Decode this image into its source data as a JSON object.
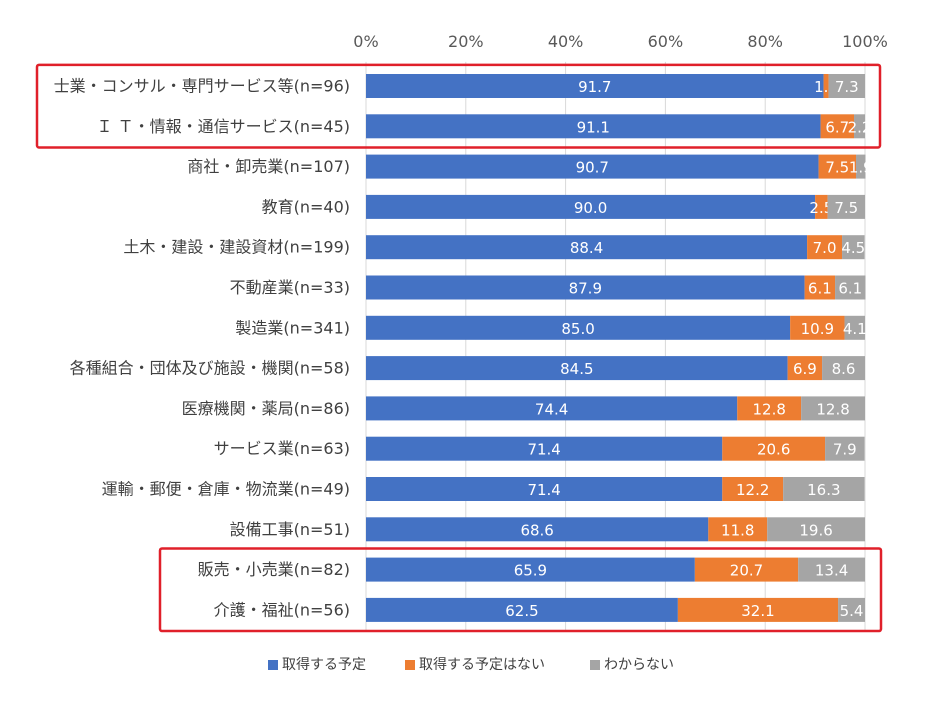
{
  "chart_data": {
    "type": "bar",
    "orientation": "horizontal",
    "stacked": true,
    "normalized_to_percent": true,
    "x_ticks": [
      "0%",
      "20%",
      "40%",
      "60%",
      "80%",
      "100%"
    ],
    "xlim": [
      0,
      100
    ],
    "grid": true,
    "legend_position": "bottom",
    "categories": [
      "士業・コンサル・専門サービス等(n=96)",
      "Ｉ Ｔ・情報・通信サービス(n=45)",
      "商社・卸売業(n=107)",
      "教育(n=40)",
      "土木・建設・建設資材(n=199)",
      "不動産業(n=33)",
      "製造業(n=341)",
      "各種組合・団体及び施設・機関(n=58)",
      "医療機関・薬局(n=86)",
      "サービス業(n=63)",
      "運輸・郵便・倉庫・物流業(n=49)",
      "設備工事(n=51)",
      "販売・小売業(n=82)",
      "介護・福祉(n=56)"
    ],
    "series": [
      {
        "name": "取得する予定",
        "color": "#4472c4",
        "values": [
          91.7,
          91.1,
          90.7,
          90.0,
          88.4,
          87.9,
          85.0,
          84.5,
          74.4,
          71.4,
          71.4,
          68.6,
          65.9,
          62.5
        ],
        "labels": [
          "91.7",
          "91.1",
          "90.7",
          "90.0",
          "88.4",
          "87.9",
          "85.0",
          "84.5",
          "74.4",
          "71.4",
          "71.4",
          "68.6",
          "65.9",
          "62.5"
        ]
      },
      {
        "name": "取得する予定はない",
        "color": "#ed7d31",
        "values": [
          1.0,
          6.7,
          7.5,
          2.5,
          7.0,
          6.1,
          10.9,
          6.9,
          12.8,
          20.6,
          12.2,
          11.8,
          20.7,
          32.1
        ],
        "labels": [
          "1.0",
          "6.7",
          "7.5",
          "2.5",
          "7.0",
          "6.1",
          "10.9",
          "6.9",
          "12.8",
          "20.6",
          "12.2",
          "11.8",
          "20.7",
          "32.1"
        ]
      },
      {
        "name": "わからない",
        "color": "#a5a5a5",
        "values": [
          7.3,
          2.2,
          1.9,
          7.5,
          4.5,
          6.1,
          4.1,
          8.6,
          12.8,
          7.9,
          16.3,
          19.6,
          13.4,
          5.4
        ],
        "labels": [
          "7.3",
          "2.2",
          "1.9",
          "7.5",
          "4.5",
          "6.1",
          "4.1",
          "8.6",
          "12.8",
          "7.9",
          "16.3",
          "19.6",
          "13.4",
          "5.4"
        ]
      }
    ],
    "highlight_groups": [
      {
        "rows": [
          0,
          1
        ],
        "color": "#e0202a"
      },
      {
        "rows": [
          12,
          13
        ],
        "color": "#e0202a"
      }
    ]
  }
}
